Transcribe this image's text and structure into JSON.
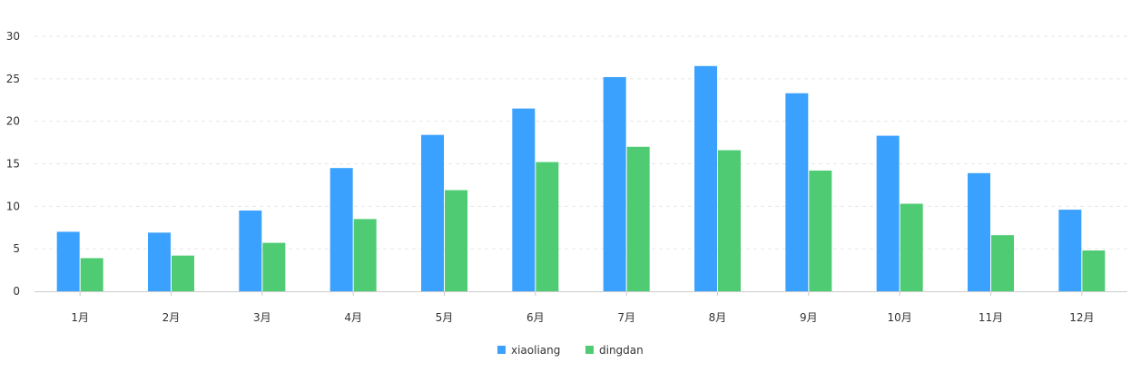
{
  "chart_data": {
    "type": "bar",
    "categories": [
      "1月",
      "2月",
      "3月",
      "4月",
      "5月",
      "6月",
      "7月",
      "8月",
      "9月",
      "10月",
      "11月",
      "12月"
    ],
    "series": [
      {
        "name": "xiaoliang",
        "color": "#3ba1ff",
        "values": [
          7.0,
          6.9,
          9.5,
          14.5,
          18.4,
          21.5,
          25.2,
          26.5,
          23.3,
          18.3,
          13.9,
          9.6
        ]
      },
      {
        "name": "dingdan",
        "color": "#4fcb74",
        "values": [
          3.9,
          4.2,
          5.7,
          8.5,
          11.9,
          15.2,
          17.0,
          16.6,
          14.2,
          10.3,
          6.6,
          4.8
        ]
      }
    ],
    "yticks": [
      "0",
      "5",
      "10",
      "15",
      "20",
      "25",
      "30"
    ],
    "ylim": [
      0,
      30
    ],
    "grid": true,
    "legend_position": "bottom-center"
  }
}
